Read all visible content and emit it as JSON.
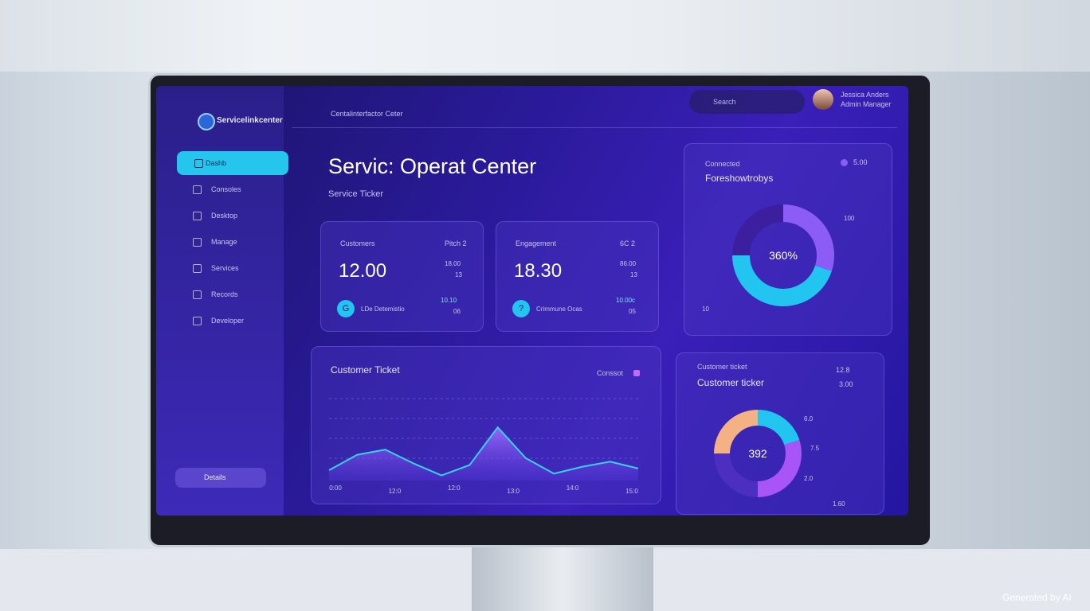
{
  "sidebar": {
    "brand": "Servicelinkcenter",
    "nav": [
      "Dashb",
      "Consoles",
      "Desktop",
      "Manage",
      "Services",
      "Records",
      "Developer"
    ],
    "footer": "Details"
  },
  "header": {
    "breadcrumb": "Centalinterfactor Ceter",
    "search": "Search",
    "user_name": "Jessica Anders",
    "user_role": "Admin Manager"
  },
  "title": "Servic: Operat Center",
  "subtitle": "Service Ticker",
  "cards": [
    {
      "label": "Customers",
      "tag": "Pitch 2",
      "value": "12.00",
      "side": [
        "18.00",
        "13"
      ],
      "foot": "LDe Detemistio",
      "foot_side": [
        "10.10",
        "06"
      ],
      "icon": "G"
    },
    {
      "label": "Engagement",
      "tag": "6C 2",
      "value": "18.30",
      "side": [
        "86.00",
        "13"
      ],
      "foot": "Crimmune Ocas",
      "foot_side": [
        "10.00c",
        "05"
      ],
      "icon": "?"
    }
  ],
  "donut_top": {
    "label": "Connected",
    "title": "Foreshowtrobys",
    "legend": "5.00",
    "center": "360%",
    "callouts": [
      "100",
      "10"
    ],
    "values": [
      30,
      45,
      25
    ],
    "colors": [
      "#8b5cf6",
      "#22c4f0",
      "#3b1f9e"
    ]
  },
  "area_chart": {
    "title": "Customer Ticket",
    "legend": "Conssot",
    "x_labels": [
      "0:00",
      "12:0",
      "12:0",
      "13:0",
      "14:0",
      "15:0"
    ],
    "values": [
      12,
      30,
      36,
      20,
      6,
      18,
      62,
      26,
      8,
      16,
      22,
      14
    ],
    "ylim": [
      0,
      100
    ]
  },
  "donut_bottom": {
    "label": "Customer ticket",
    "title": "Customer ticker",
    "side": [
      "12.8",
      "3.00"
    ],
    "center": "392",
    "callouts": [
      "6.0",
      "7.5",
      "2.0",
      "1.60"
    ],
    "values": [
      20,
      30,
      25,
      25
    ],
    "colors": [
      "#22c4f0",
      "#a855f7",
      "#4c2fc0",
      "#f4b183"
    ]
  },
  "watermark": "Generated by AI"
}
